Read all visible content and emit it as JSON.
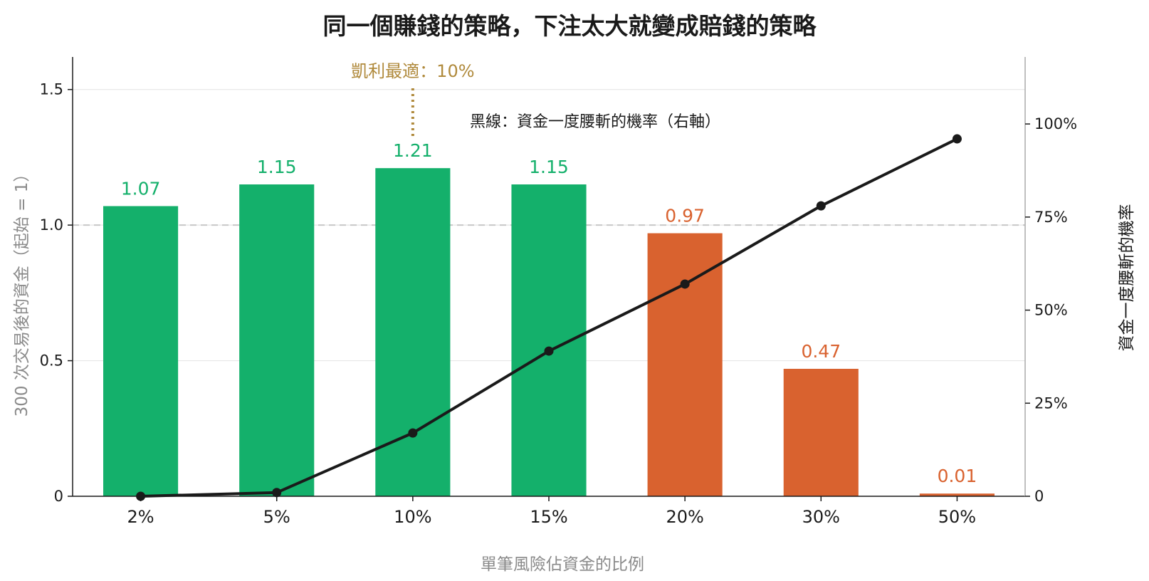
{
  "colors": {
    "profit": "#14b06b",
    "loss": "#d9622f",
    "line": "#1a1a1a",
    "kelly": "#b08a3c",
    "reference": "#c8c8c8",
    "grid": "#e6e6e6"
  },
  "chart_data": {
    "type": "bar",
    "title": "同一個賺錢的策略，下注太大就變成賠錢的策略",
    "xlabel": "單筆風險佔資金的比例",
    "ylabel": "300 次交易後的資金（起始 = 1）",
    "ylabel_right": "資金一度腰斬的機率",
    "categories": [
      "2%",
      "5%",
      "10%",
      "15%",
      "20%",
      "30%",
      "50%"
    ],
    "bar_values": [
      1.07,
      1.15,
      1.21,
      1.15,
      0.97,
      0.47,
      0.01
    ],
    "bar_labels": [
      "1.07",
      "1.15",
      "1.21",
      "1.15",
      "0.97",
      "0.47",
      "0.01"
    ],
    "bar_colors": [
      "profit",
      "profit",
      "profit",
      "profit",
      "loss",
      "loss",
      "loss"
    ],
    "line_values_pct": [
      0,
      1,
      17,
      39,
      57,
      78,
      96
    ],
    "ylim": [
      0,
      1.62
    ],
    "yticks": [
      {
        "value": 0,
        "label": "0"
      },
      {
        "value": 0.5,
        "label": "0.5"
      },
      {
        "value": 1.0,
        "label": "1.0"
      },
      {
        "value": 1.5,
        "label": "1.5"
      }
    ],
    "ylim_right_pct": [
      0,
      118
    ],
    "yticks_right": [
      {
        "value": 0,
        "label": "0"
      },
      {
        "value": 25,
        "label": "25%"
      },
      {
        "value": 50,
        "label": "50%"
      },
      {
        "value": 75,
        "label": "75%"
      },
      {
        "value": 100,
        "label": "100%"
      }
    ],
    "reference_line": 1.0,
    "grid": true,
    "annotations": {
      "kelly": {
        "text": "凱利最適：10%",
        "category": "10%"
      },
      "line_note": "黑線：資金一度腰斬的機率（右軸）"
    }
  }
}
